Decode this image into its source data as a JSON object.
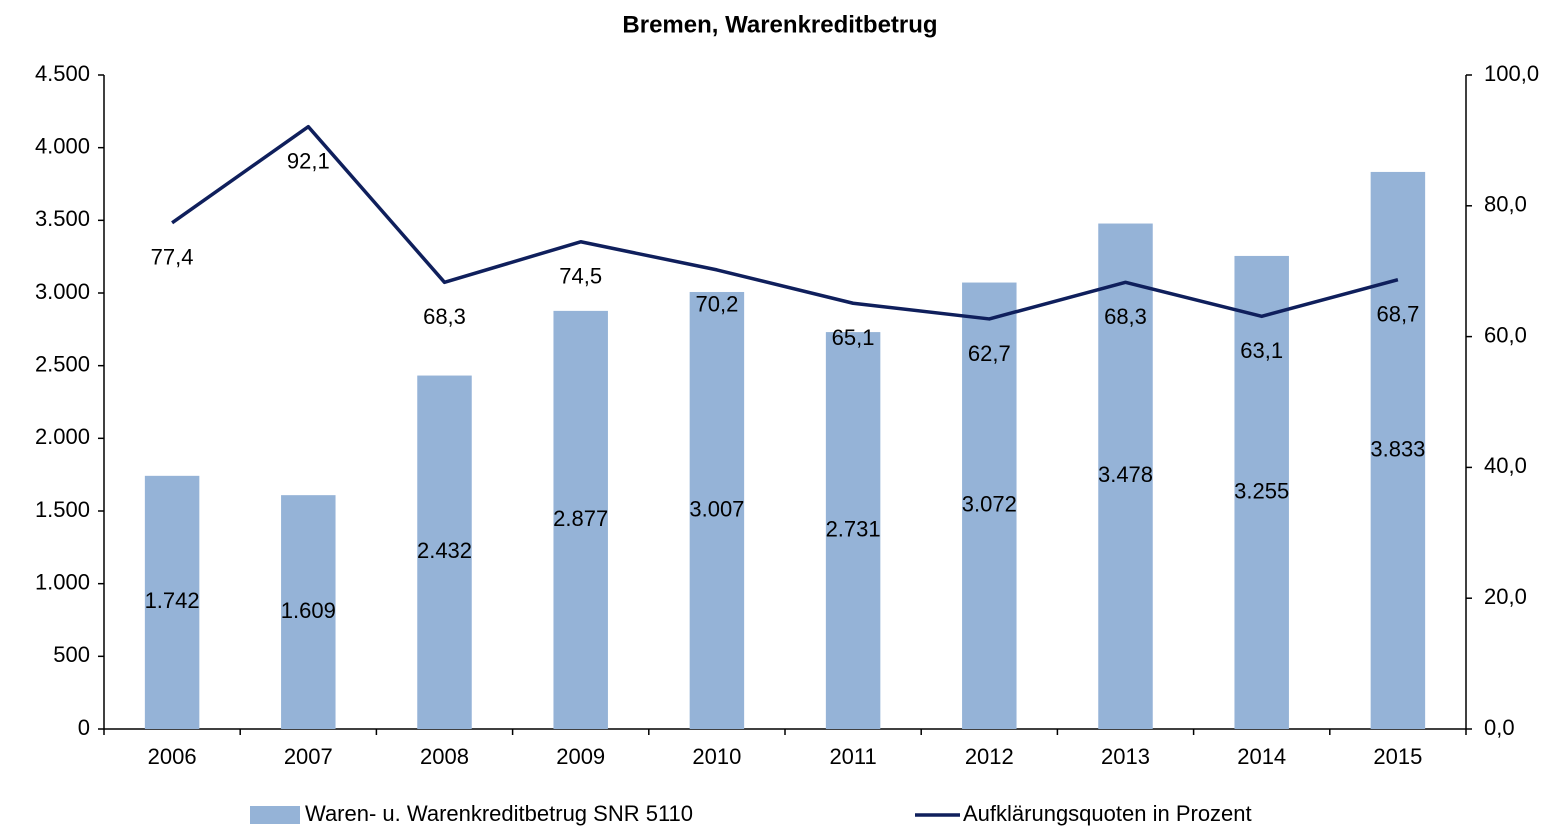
{
  "chart_data": {
    "type": "bar_line",
    "title": "Bremen, Warenkreditbetrug",
    "categories": [
      "2006",
      "2007",
      "2008",
      "2009",
      "2010",
      "2011",
      "2012",
      "2013",
      "2014",
      "2015"
    ],
    "series": [
      {
        "name": "Waren- u. Warenkreditbetrug SNR 5110",
        "type": "bar",
        "axis": "y",
        "color": "#95b3d7",
        "values": [
          1742,
          1609,
          2432,
          2877,
          3007,
          2731,
          3072,
          3478,
          3255,
          3833
        ],
        "value_labels": [
          "1.742",
          "1.609",
          "2.432",
          "2.877",
          "3.007",
          "2.731",
          "3.072",
          "3.478",
          "3.255",
          "3.833"
        ]
      },
      {
        "name": "Aufklärungsquoten in Prozent",
        "type": "line",
        "axis": "y2",
        "color": "#0f1f5c",
        "values": [
          77.4,
          92.1,
          68.3,
          74.5,
          70.2,
          65.1,
          62.7,
          68.3,
          63.1,
          68.7
        ],
        "value_labels": [
          "77,4",
          "92,1",
          "68,3",
          "74,5",
          "70,2",
          "65,1",
          "62,7",
          "68,3",
          "63,1",
          "68,7"
        ]
      }
    ],
    "ylim": [
      0,
      4500
    ],
    "yticks": [
      0,
      500,
      {
        "value": 1000,
        "label": "1.000"
      },
      {
        "value": 1500,
        "label": "1.500"
      },
      {
        "value": 2000,
        "label": "2.000"
      },
      {
        "value": 2500,
        "label": "2.500"
      },
      {
        "value": 3000,
        "label": "3.000"
      },
      {
        "value": 3500,
        "label": "3.500"
      },
      {
        "value": 4000,
        "label": "4.000"
      },
      {
        "value": 4500,
        "label": "4.500"
      }
    ],
    "y2lim": [
      0,
      100
    ],
    "y2ticks": [
      {
        "value": 0,
        "label": "0,0"
      },
      {
        "value": 20,
        "label": "20,0"
      },
      {
        "value": 40,
        "label": "40,0"
      },
      {
        "value": 60,
        "label": "60,0"
      },
      {
        "value": 80,
        "label": "80,0"
      },
      {
        "value": 100,
        "label": "100,0"
      }
    ],
    "legend": "bottom",
    "grid": false
  }
}
